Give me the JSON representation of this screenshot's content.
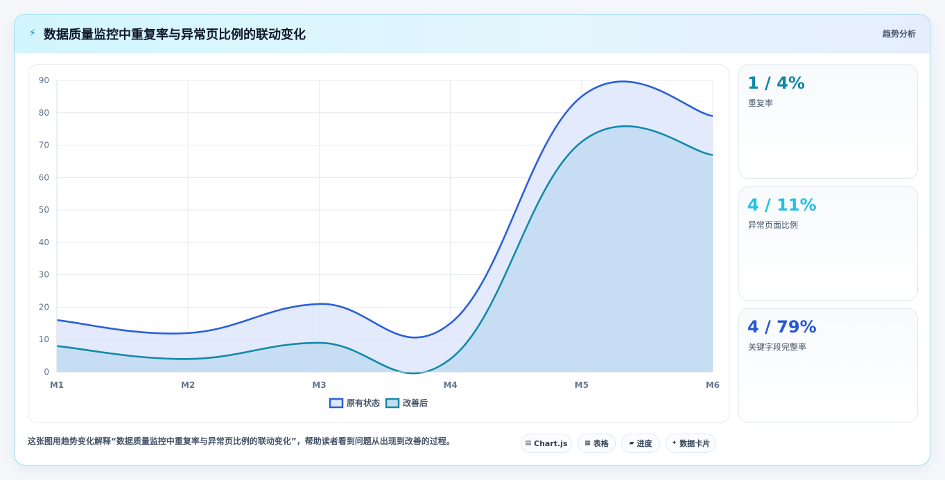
{
  "header": {
    "icon": "lightning-icon",
    "title": "数据质量监控中重复率与异常页比例的联动变化",
    "tag": "趋势分析"
  },
  "stats": [
    {
      "value": "1 / 4%",
      "label": "重复率",
      "color": "#0e86a8"
    },
    {
      "value": "4 / 11%",
      "label": "异常页面比例",
      "color": "#22c1e3"
    },
    {
      "value": "4 / 79%",
      "label": "关键字段完整率",
      "color": "#2457d6"
    }
  ],
  "footer": {
    "text": "这张图用趋势变化解释“数据质量监控中重复率与异常页比例的联动变化”，帮助读者看到问题从出现到改善的过程。",
    "pills": [
      {
        "icon": "chart-icon",
        "glyph": "▤",
        "label": "Chart.js"
      },
      {
        "icon": "table-icon",
        "glyph": "▦",
        "label": "表格"
      },
      {
        "icon": "progress-icon",
        "glyph": "▰",
        "label": "进度"
      },
      {
        "icon": "card-icon",
        "glyph": "✦",
        "label": "数据卡片"
      }
    ]
  },
  "chart_data": {
    "type": "area",
    "categories": [
      "M1",
      "M2",
      "M3",
      "M4",
      "M5",
      "M6"
    ],
    "ylim": [
      0,
      90
    ],
    "yticks": [
      0,
      10,
      20,
      30,
      40,
      50,
      60,
      70,
      80,
      90
    ],
    "grid": true,
    "legend": "bottom",
    "series": [
      {
        "name": "原有状态",
        "values": [
          16,
          12,
          21,
          15,
          85,
          79
        ],
        "color": "#2b5fd9",
        "fill": "#dfe8fc"
      },
      {
        "name": "改善后",
        "values": [
          8,
          4,
          9,
          4,
          71,
          67
        ],
        "color": "#1289a8",
        "fill": "#c3dcf2"
      }
    ]
  }
}
